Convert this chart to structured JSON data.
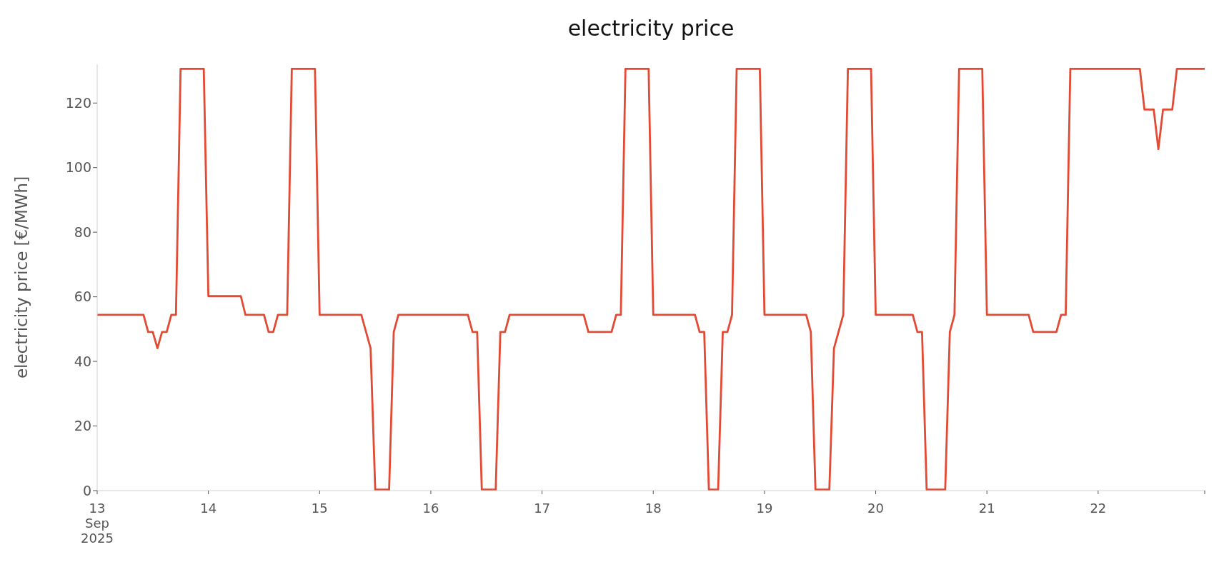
{
  "chart_data": {
    "type": "line",
    "title": "electricity price",
    "ylabel": "electricity price [€/MWh]",
    "x": [
      "2025-09-13T00:00",
      "2025-09-13T10:00",
      "2025-09-13T11:00",
      "2025-09-13T12:00",
      "2025-09-13T13:00",
      "2025-09-13T14:00",
      "2025-09-13T15:00",
      "2025-09-13T16:00",
      "2025-09-13T17:00",
      "2025-09-13T18:00",
      "2025-09-13T23:00",
      "2025-09-14T00:00",
      "2025-09-14T07:00",
      "2025-09-14T08:00",
      "2025-09-14T12:00",
      "2025-09-14T13:00",
      "2025-09-14T14:00",
      "2025-09-14T15:00",
      "2025-09-14T17:00",
      "2025-09-14T18:00",
      "2025-09-14T23:00",
      "2025-09-15T00:00",
      "2025-09-15T09:00",
      "2025-09-15T11:00",
      "2025-09-15T12:00",
      "2025-09-15T15:00",
      "2025-09-15T16:00",
      "2025-09-15T17:00",
      "2025-09-16T08:00",
      "2025-09-16T09:00",
      "2025-09-16T10:00",
      "2025-09-16T11:00",
      "2025-09-16T14:00",
      "2025-09-16T15:00",
      "2025-09-16T16:00",
      "2025-09-16T17:00",
      "2025-09-17T09:00",
      "2025-09-17T10:00",
      "2025-09-17T15:00",
      "2025-09-17T16:00",
      "2025-09-17T17:00",
      "2025-09-17T18:00",
      "2025-09-17T23:00",
      "2025-09-18T00:00",
      "2025-09-18T09:00",
      "2025-09-18T10:00",
      "2025-09-18T11:00",
      "2025-09-18T12:00",
      "2025-09-18T14:00",
      "2025-09-18T15:00",
      "2025-09-18T16:00",
      "2025-09-18T17:00",
      "2025-09-18T18:00",
      "2025-09-18T23:00",
      "2025-09-19T00:00",
      "2025-09-19T09:00",
      "2025-09-19T10:00",
      "2025-09-19T11:00",
      "2025-09-19T14:00",
      "2025-09-19T15:00",
      "2025-09-19T17:00",
      "2025-09-19T18:00",
      "2025-09-19T23:00",
      "2025-09-20T00:00",
      "2025-09-20T08:00",
      "2025-09-20T09:00",
      "2025-09-20T10:00",
      "2025-09-20T11:00",
      "2025-09-20T15:00",
      "2025-09-20T16:00",
      "2025-09-20T17:00",
      "2025-09-20T18:00",
      "2025-09-20T23:00",
      "2025-09-21T00:00",
      "2025-09-21T09:00",
      "2025-09-21T10:00",
      "2025-09-21T15:00",
      "2025-09-21T16:00",
      "2025-09-21T17:00",
      "2025-09-21T18:00",
      "2025-09-22T09:00",
      "2025-09-22T10:00",
      "2025-09-22T12:00",
      "2025-09-22T13:00",
      "2025-09-22T14:00",
      "2025-09-22T16:00",
      "2025-09-22T17:00",
      "2025-09-22T23:00"
    ],
    "values": [
      54.4,
      54.4,
      49.1,
      49.1,
      44.1,
      49.1,
      49.1,
      54.4,
      54.4,
      130.6,
      130.6,
      60.2,
      60.2,
      54.4,
      54.4,
      49.1,
      49.1,
      54.4,
      54.4,
      130.6,
      130.6,
      54.4,
      54.4,
      44.1,
      0.3,
      0.3,
      49.1,
      54.4,
      54.4,
      49.1,
      49.1,
      0.3,
      0.3,
      49.1,
      49.1,
      54.4,
      54.4,
      49.1,
      49.1,
      54.4,
      54.4,
      130.6,
      130.6,
      54.4,
      54.4,
      49.1,
      49.1,
      0.3,
      0.3,
      49.1,
      49.1,
      54.4,
      130.6,
      130.6,
      54.4,
      54.4,
      49.1,
      0.3,
      0.3,
      44.1,
      54.4,
      130.6,
      130.6,
      54.4,
      54.4,
      49.1,
      49.1,
      0.3,
      0.3,
      49.1,
      54.4,
      130.6,
      130.6,
      54.4,
      54.4,
      49.1,
      49.1,
      54.4,
      54.4,
      130.6,
      130.6,
      118.0,
      118.0,
      105.7,
      118.0,
      118.0,
      130.6,
      130.6
    ],
    "color": "#e24a33",
    "line_style": "solid",
    "xticks": [
      {
        "value": "2025-09-13",
        "label": "13\nSep\n2025"
      },
      {
        "value": "2025-09-14",
        "label": "14"
      },
      {
        "value": "2025-09-15",
        "label": "15"
      },
      {
        "value": "2025-09-16",
        "label": "16"
      },
      {
        "value": "2025-09-17",
        "label": "17"
      },
      {
        "value": "2025-09-18",
        "label": "18"
      },
      {
        "value": "2025-09-19",
        "label": "19"
      },
      {
        "value": "2025-09-20",
        "label": "20"
      },
      {
        "value": "2025-09-21",
        "label": "21"
      },
      {
        "value": "2025-09-22",
        "label": "22"
      },
      {
        "value": "2025-09-22T23:00",
        "label": null
      }
    ],
    "xlim": [
      "2025-09-13T00:00",
      "2025-09-22T23:00"
    ],
    "ylim": [
      0,
      132
    ],
    "yticks": [
      0,
      20,
      40,
      60,
      80,
      100,
      120
    ]
  }
}
